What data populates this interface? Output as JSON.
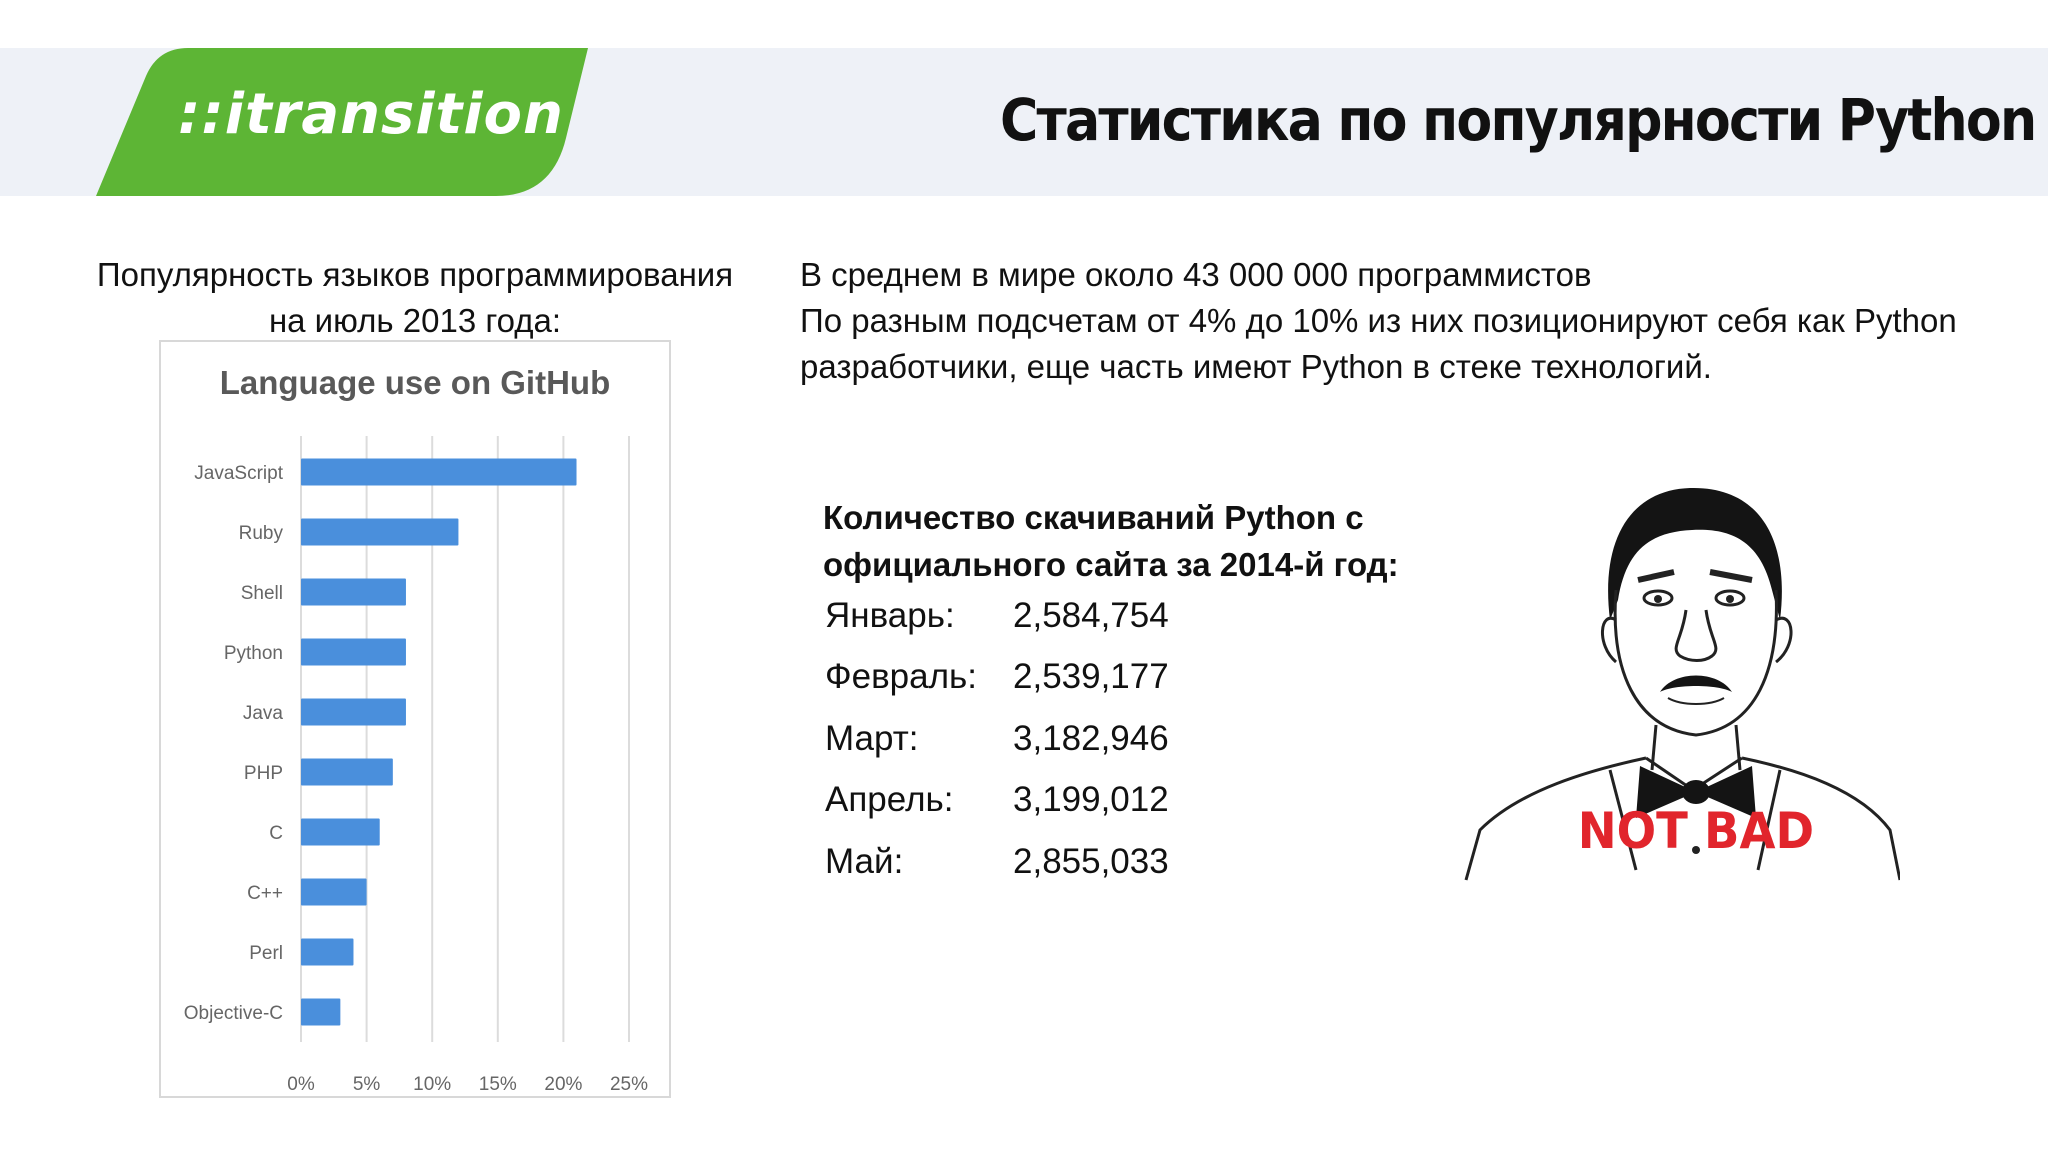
{
  "slide": {
    "logo": "::itransition",
    "title": "Статистика по популярности Python"
  },
  "left": {
    "caption_line1": "Популярность языков программирования",
    "caption_line2": "на июль 2013 года:"
  },
  "right": {
    "intro_line1": "В  среднем в  мире около 43 000 000 программистов",
    "intro_line2": "По разным подсчетам от 4% до 10% из них позиционируют себя как Python",
    "intro_line3": " разработчики, еще часть имеют Python в  стеке технологий."
  },
  "downloads": {
    "title_line1": "Количество скачиваний Python с",
    "title_line2": "официального сайта за 2014-й год:",
    "rows": [
      {
        "month": "Январь:",
        "count": "2,584,754"
      },
      {
        "month": "Февраль:",
        "count": "2,539,177"
      },
      {
        "month": "Март:",
        "count": "3,182,946"
      },
      {
        "month": "Апрель:",
        "count": "3,199,012"
      },
      {
        "month": "Май:",
        "count": "2,855,033"
      }
    ]
  },
  "meme": {
    "caption": "NOT BAD"
  },
  "colors": {
    "brand_green": "#5db535",
    "bar_blue": "#4a8fdc",
    "meme_red": "#e1252c"
  },
  "chart_data": {
    "type": "bar",
    "orientation": "horizontal",
    "title": "Language use on GitHub",
    "categories": [
      "JavaScript",
      "Ruby",
      "Shell",
      "Python",
      "Java",
      "PHP",
      "C",
      "C++",
      "Perl",
      "Objective-C"
    ],
    "values": [
      21,
      12,
      8,
      8,
      8,
      7,
      6,
      5,
      4,
      3
    ],
    "xlim": [
      0,
      25
    ],
    "xticks": [
      "0%",
      "5%",
      "10%",
      "15%",
      "20%",
      "25%"
    ],
    "grid": true
  }
}
